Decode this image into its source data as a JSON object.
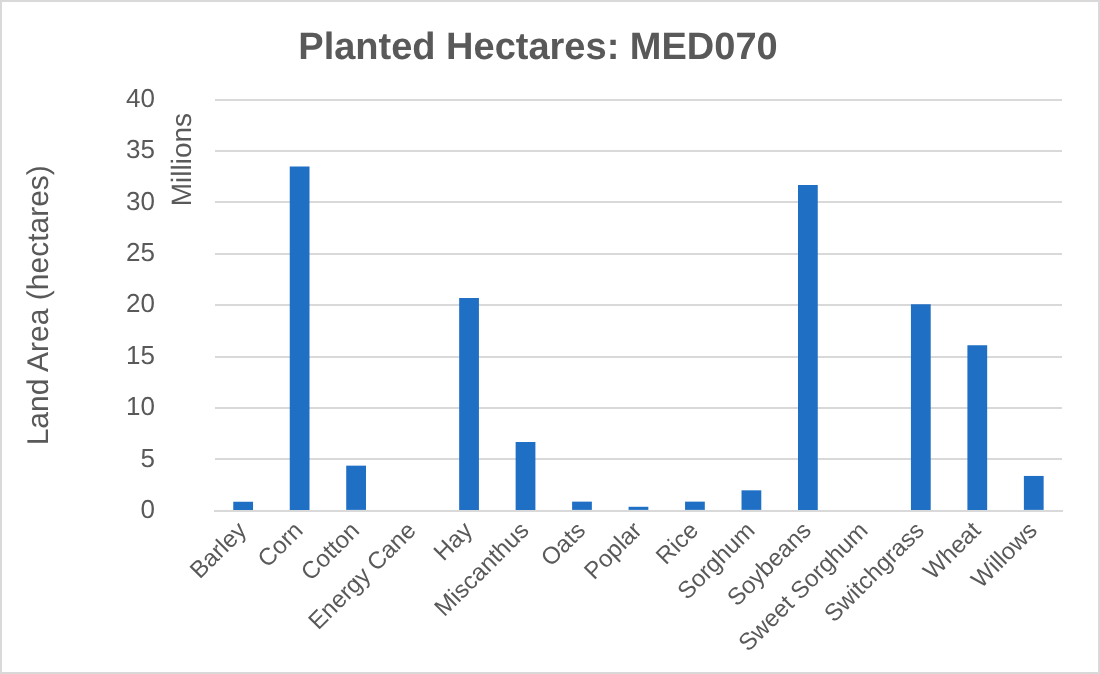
{
  "chart_data": {
    "type": "bar",
    "title": "Planted Hectares: MED070",
    "ylabel": "Land Area (hectares)",
    "annotations": [
      "Millions"
    ],
    "categories": [
      "Barley",
      "Corn",
      "Cotton",
      "Energy Cane",
      "Hay",
      "Miscanthus",
      "Oats",
      "Poplar",
      "Rice",
      "Sorghum",
      "Soybeans",
      "Sweet Sorghum",
      "Switchgrass",
      "Wheat",
      "Willows"
    ],
    "values": [
      0.9,
      33.5,
      4.4,
      0,
      20.7,
      6.7,
      0.9,
      0.4,
      0.9,
      2.0,
      31.7,
      0,
      20.1,
      16.1,
      3.4
    ],
    "color": "#1f6fc5",
    "ylim": [
      0,
      40
    ],
    "yticks": [
      0,
      5,
      10,
      15,
      20,
      25,
      30,
      35,
      40
    ],
    "grid": "y",
    "legend": false
  }
}
